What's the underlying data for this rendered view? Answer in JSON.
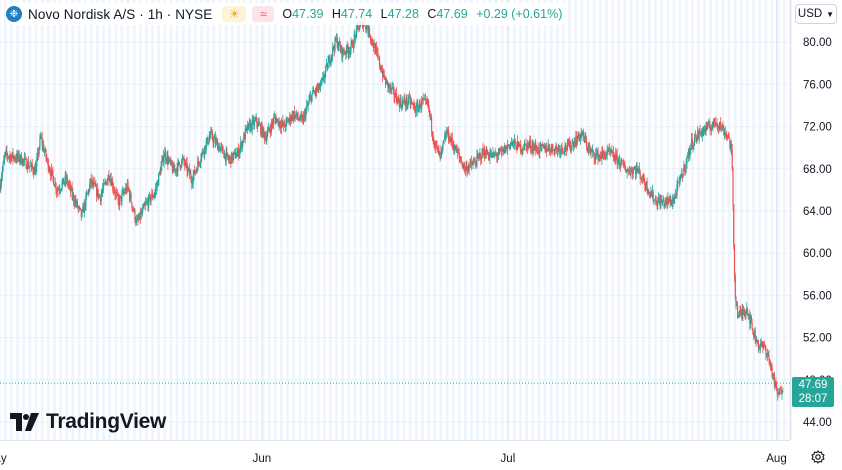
{
  "header": {
    "symbol": "Novo Nordisk A/S · 1h · NYSE",
    "open_label": "O",
    "open": "47.39",
    "high_label": "H",
    "high": "47.74",
    "low_label": "L",
    "low": "47.28",
    "close_label": "C",
    "close": "47.69",
    "change": "+0.29 (+0.61%)"
  },
  "currency_button": {
    "label": "USD"
  },
  "watermark": {
    "text": "TradingView"
  },
  "last_price": {
    "price": "47.69",
    "countdown": "28:07"
  },
  "colors": {
    "up": "#26a69a",
    "down": "#ef5350",
    "grid": "#e9f0fa",
    "stripe": "#eef5fd"
  },
  "chart_data": {
    "type": "candlestick",
    "interval": "1h",
    "currency": "USD",
    "y_ticks": [
      44,
      48,
      52,
      56,
      60,
      64,
      68,
      72,
      76,
      80
    ],
    "y_range": [
      42.3,
      84.0
    ],
    "x_ticks": [
      {
        "label": "May",
        "t": 0.0
      },
      {
        "label": "Jun",
        "t": 43.4
      },
      {
        "label": "Jul",
        "t": 83.5
      },
      {
        "label": "Aug",
        "t": 127.3
      }
    ],
    "x_range": [
      0.7,
      129.5
    ],
    "last_price": 47.69,
    "trend": [
      [
        0.7,
        66.5
      ],
      [
        1.5,
        69.3
      ],
      [
        4.0,
        69.0
      ],
      [
        6.5,
        67.8
      ],
      [
        7.3,
        71.0
      ],
      [
        8.5,
        68.5
      ],
      [
        10.0,
        66.0
      ],
      [
        11.5,
        67.0
      ],
      [
        12.5,
        65.5
      ],
      [
        14.0,
        63.5
      ],
      [
        15.5,
        66.8
      ],
      [
        17.0,
        65.3
      ],
      [
        18.5,
        67.5
      ],
      [
        20.0,
        64.8
      ],
      [
        21.5,
        66.3
      ],
      [
        23.0,
        62.8
      ],
      [
        24.5,
        64.6
      ],
      [
        26.0,
        65.8
      ],
      [
        27.5,
        69.5
      ],
      [
        29.0,
        67.8
      ],
      [
        30.5,
        68.8
      ],
      [
        32.0,
        67.0
      ],
      [
        33.5,
        69.3
      ],
      [
        35.0,
        71.2
      ],
      [
        36.5,
        70.0
      ],
      [
        38.0,
        68.8
      ],
      [
        39.5,
        69.5
      ],
      [
        41.0,
        71.8
      ],
      [
        42.5,
        72.5
      ],
      [
        44.0,
        71.0
      ],
      [
        45.5,
        72.8
      ],
      [
        47.0,
        72.0
      ],
      [
        48.5,
        73.2
      ],
      [
        50.0,
        72.5
      ],
      [
        51.5,
        75.0
      ],
      [
        53.0,
        75.8
      ],
      [
        54.5,
        78.5
      ],
      [
        55.5,
        80.2
      ],
      [
        56.5,
        79.0
      ],
      [
        58.0,
        79.5
      ],
      [
        59.0,
        81.3
      ],
      [
        60.0,
        82.0
      ],
      [
        61.0,
        80.8
      ],
      [
        62.0,
        79.0
      ],
      [
        63.5,
        76.3
      ],
      [
        65.0,
        75.0
      ],
      [
        66.0,
        74.2
      ],
      [
        67.5,
        74.4
      ],
      [
        68.5,
        73.6
      ],
      [
        69.5,
        74.3
      ],
      [
        70.5,
        74.0
      ],
      [
        71.5,
        70.5
      ],
      [
        72.5,
        69.0
      ],
      [
        73.5,
        71.5
      ],
      [
        75.0,
        69.8
      ],
      [
        76.5,
        68.0
      ],
      [
        78.0,
        68.5
      ],
      [
        79.5,
        69.6
      ],
      [
        81.0,
        69.2
      ],
      [
        82.5,
        69.5
      ],
      [
        84.0,
        70.5
      ],
      [
        85.5,
        70.0
      ],
      [
        87.0,
        70.3
      ],
      [
        88.5,
        69.8
      ],
      [
        90.0,
        70.0
      ],
      [
        91.5,
        69.9
      ],
      [
        93.5,
        70.1
      ],
      [
        95.5,
        71.3
      ],
      [
        97.0,
        69.5
      ],
      [
        98.5,
        69.2
      ],
      [
        100.0,
        69.5
      ],
      [
        101.5,
        68.8
      ],
      [
        103.0,
        67.8
      ],
      [
        104.5,
        68.0
      ],
      [
        106.0,
        66.5
      ],
      [
        107.5,
        65.0
      ],
      [
        109.0,
        64.8
      ],
      [
        110.5,
        65.0
      ],
      [
        111.5,
        66.8
      ],
      [
        112.5,
        68.5
      ],
      [
        113.5,
        70.5
      ],
      [
        115.0,
        71.5
      ],
      [
        116.5,
        72.0
      ],
      [
        117.5,
        72.5
      ],
      [
        118.5,
        71.8
      ],
      [
        119.5,
        71.0
      ],
      [
        120.0,
        69.5
      ],
      [
        120.5,
        56.5
      ],
      [
        121.0,
        54.0
      ],
      [
        122.5,
        54.8
      ],
      [
        123.5,
        52.5
      ],
      [
        124.5,
        51.2
      ],
      [
        125.5,
        51.0
      ],
      [
        126.5,
        49.0
      ],
      [
        127.0,
        47.5
      ],
      [
        127.6,
        46.5
      ],
      [
        128.4,
        47.4
      ]
    ]
  }
}
